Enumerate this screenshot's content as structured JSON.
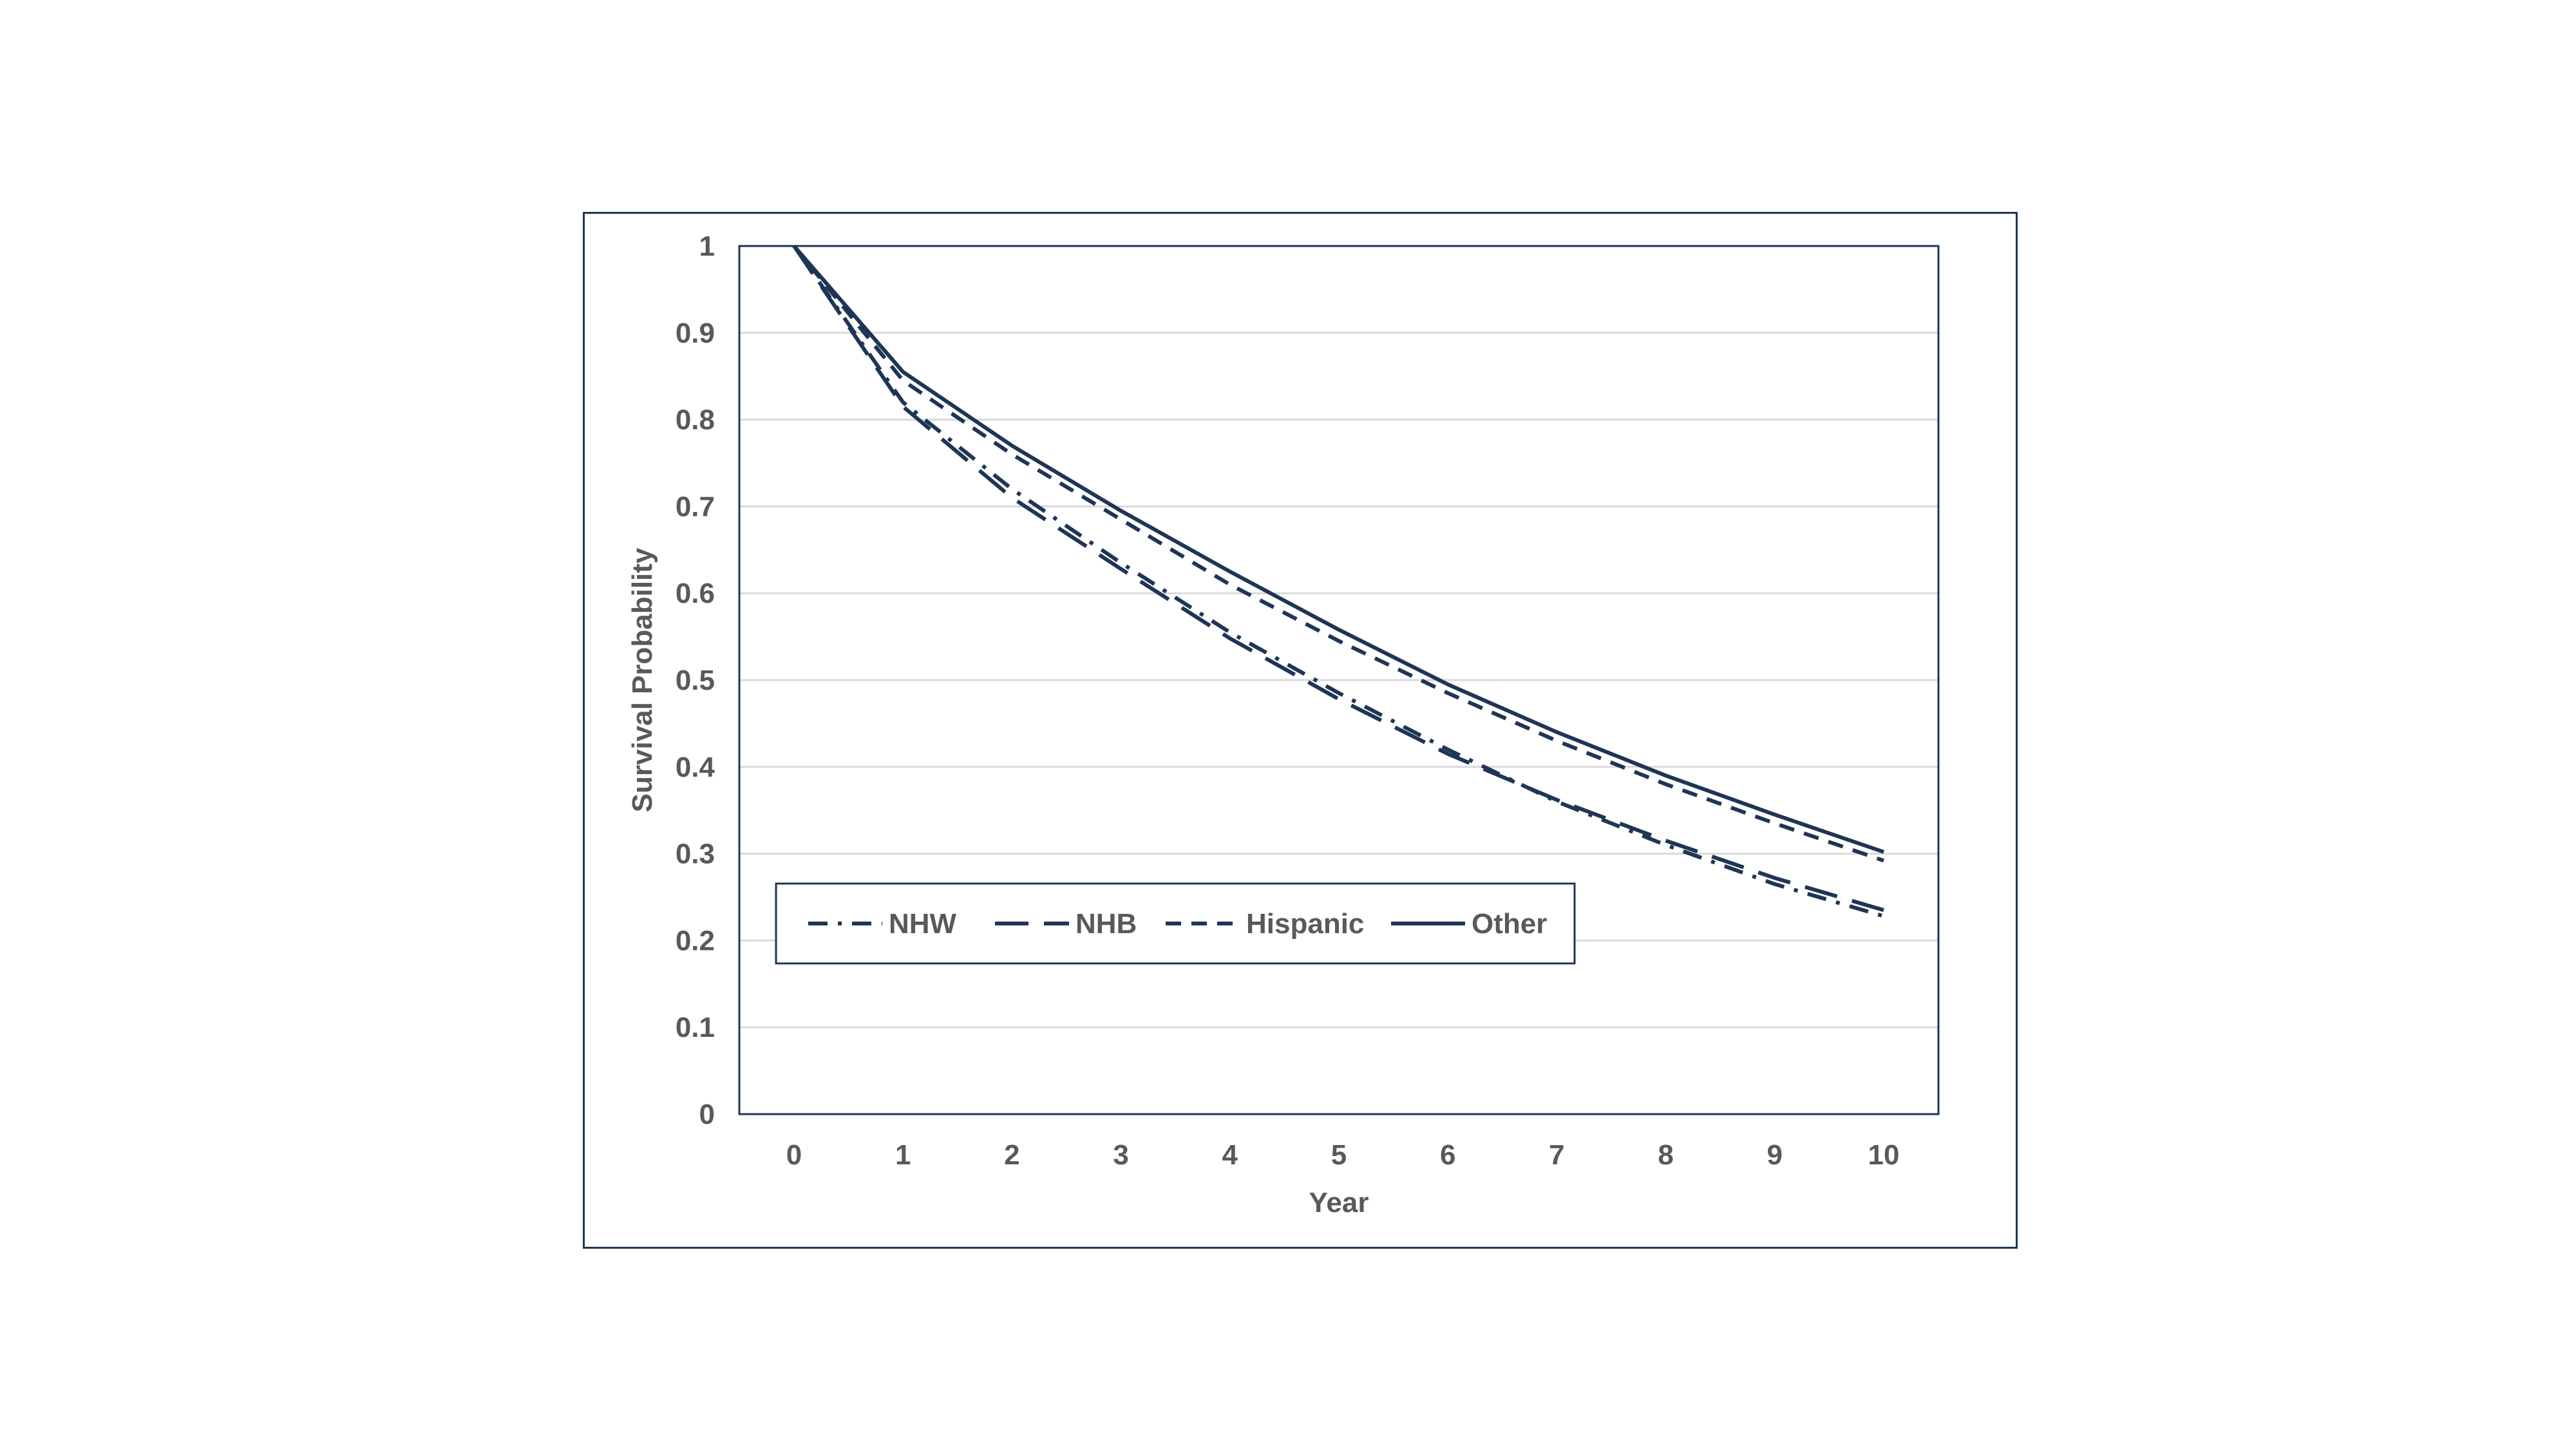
{
  "chart_data": {
    "type": "line",
    "title": "",
    "xlabel": "Year",
    "ylabel": "Survival Probability",
    "xlim": [
      0,
      10
    ],
    "ylim": [
      0,
      1
    ],
    "x": [
      0,
      1,
      2,
      3,
      4,
      5,
      6,
      7,
      8,
      9,
      10
    ],
    "x_ticks": [
      "0",
      "1",
      "2",
      "3",
      "4",
      "5",
      "6",
      "7",
      "8",
      "9",
      "10"
    ],
    "y_ticks": [
      "0",
      "0.1",
      "0.2",
      "0.3",
      "0.4",
      "0.5",
      "0.6",
      "0.7",
      "0.8",
      "0.9",
      "1"
    ],
    "grid": true,
    "legend_position": "lower-left",
    "series": [
      {
        "name": "NHW",
        "style": "dash-dot",
        "values": [
          1.0,
          0.82,
          0.72,
          0.635,
          0.555,
          0.485,
          0.42,
          0.36,
          0.31,
          0.265,
          0.228
        ]
      },
      {
        "name": "NHB",
        "style": "long-dash",
        "values": [
          1.0,
          0.815,
          0.71,
          0.628,
          0.548,
          0.478,
          0.415,
          0.362,
          0.315,
          0.272,
          0.235
        ]
      },
      {
        "name": "Hispanic",
        "style": "short-dash",
        "values": [
          1.0,
          0.845,
          0.76,
          0.685,
          0.61,
          0.545,
          0.485,
          0.43,
          0.38,
          0.335,
          0.292
        ]
      },
      {
        "name": "Other",
        "style": "solid",
        "values": [
          1.0,
          0.855,
          0.77,
          0.695,
          0.625,
          0.558,
          0.495,
          0.44,
          0.39,
          0.345,
          0.302
        ]
      }
    ],
    "colors": {
      "line": "#1f3556",
      "grid": "#d9d9d9",
      "axis": "#1f3556",
      "text": "#595959"
    }
  }
}
